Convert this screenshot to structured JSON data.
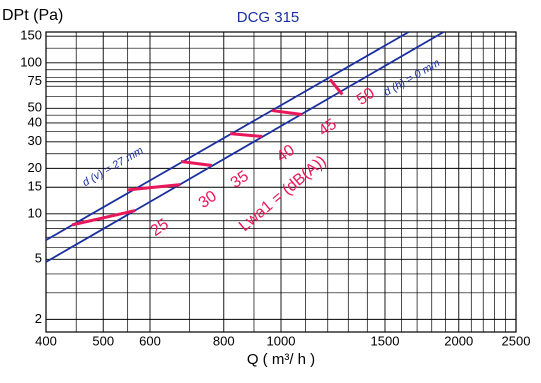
{
  "chart_data": {
    "type": "line",
    "title": "DCG 315",
    "ylabel": "DPt (Pa)",
    "xlabel": "Q ( m³/ h )",
    "xscale": "log",
    "yscale": "log",
    "grid": true,
    "xlim": [
      400,
      2500
    ],
    "ylim": [
      1.65,
      160
    ],
    "xticks": [
      400,
      500,
      600,
      800,
      1000,
      1500,
      2000,
      2500
    ],
    "yticks": [
      2,
      5,
      10,
      15,
      20,
      30,
      40,
      50,
      75,
      100,
      150
    ],
    "xgrid": [
      450,
      550,
      700,
      900,
      1100,
      1200,
      1300,
      1400,
      1600,
      1700,
      1800,
      1900,
      2100,
      2200,
      2300,
      2400
    ],
    "ygrid": [
      3,
      4,
      6,
      7,
      8,
      9,
      25,
      35,
      45,
      60,
      70,
      80,
      90,
      125
    ],
    "annotations": [
      "Lwa1 = (dB(A))"
    ],
    "series": [
      {
        "name": "d (v) = 27 mm",
        "color": "#1a2fa0",
        "x": [
          400,
          1645
        ],
        "values": [
          6.7,
          160
        ]
      },
      {
        "name": "d (h) = 0 mm",
        "color": "#1a2fa0",
        "x": [
          400,
          1885
        ],
        "values": [
          4.8,
          160
        ]
      },
      {
        "name": "25",
        "color": "#e8185a",
        "x": [
          443,
          566
        ],
        "values": [
          8.45,
          10.5
        ]
      },
      {
        "name": "30",
        "color": "#e8185a",
        "x": [
          551,
          675
        ],
        "values": [
          14.4,
          15.6
        ]
      },
      {
        "name": "35",
        "color": "#e8185a",
        "x": [
          677,
          764
        ],
        "values": [
          22.2,
          20.9
        ]
      },
      {
        "name": "40",
        "color": "#e8185a",
        "x": [
          820,
          929
        ],
        "values": [
          34.0,
          32.5
        ]
      },
      {
        "name": "45",
        "color": "#e8185a",
        "x": [
          966,
          1086
        ],
        "values": [
          48.3,
          45.5
        ]
      },
      {
        "name": "50",
        "color": "#e8185a",
        "x": [
          1211,
          1270
        ],
        "values": [
          77.6,
          61.7
        ]
      }
    ]
  }
}
